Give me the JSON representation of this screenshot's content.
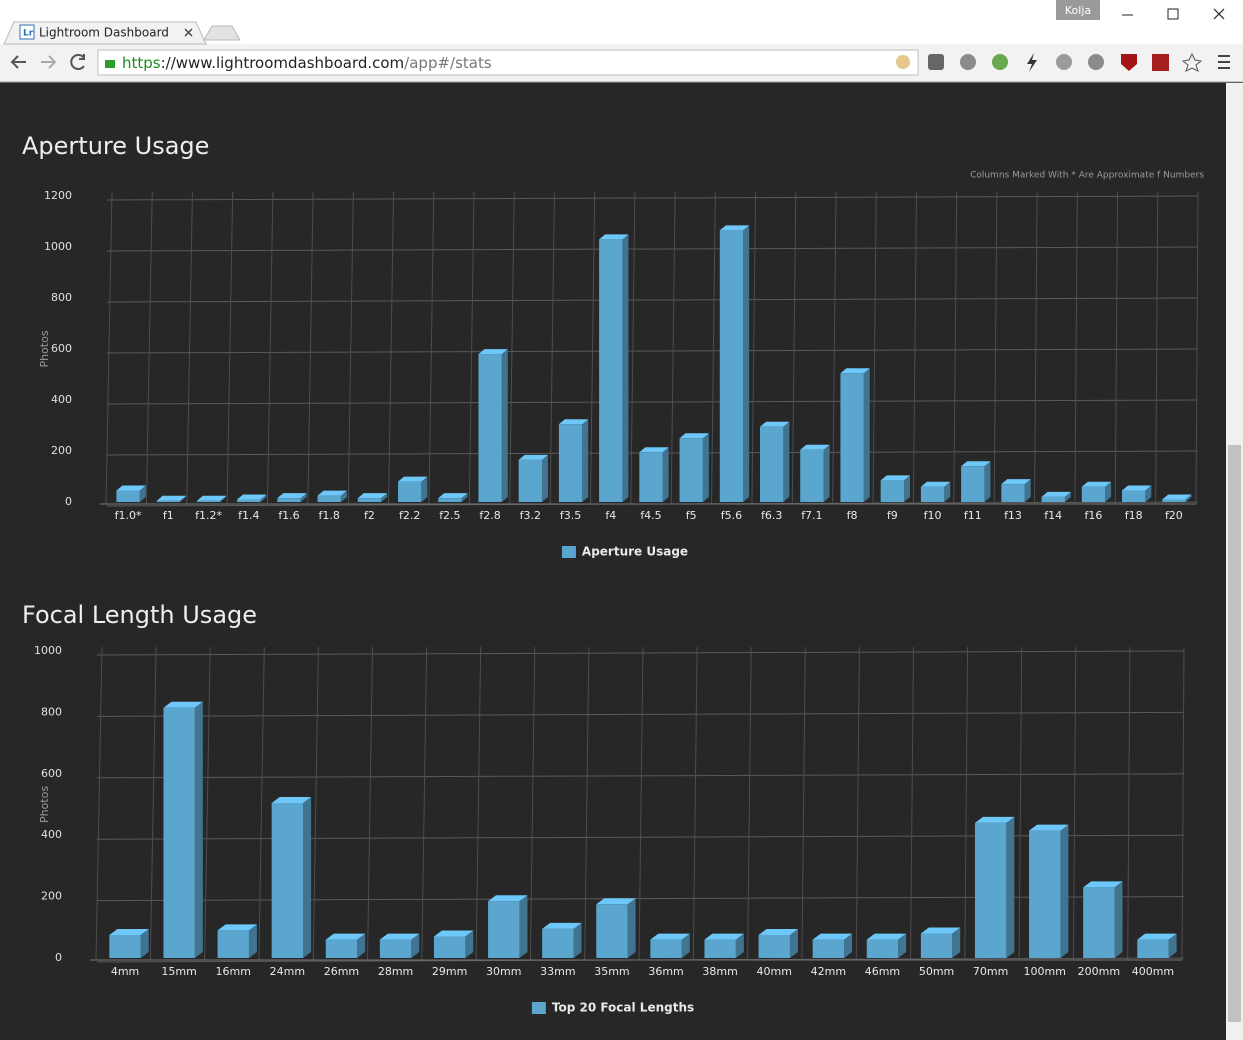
{
  "browser": {
    "tab_title": "Lightroom Dashboard",
    "profile": "Kolja",
    "url": {
      "scheme": "https",
      "host": "://www.lightroomdashboard.com",
      "path": "/app#/stats"
    }
  },
  "chart_data": [
    {
      "type": "bar",
      "title": "Aperture Usage",
      "note": "Columns Marked With * Are Approximate f Numbers",
      "y_label": "Photos",
      "categories": [
        "f1.0*",
        "f1",
        "f1.2*",
        "f1.4",
        "f1.6",
        "f1.8",
        "f2",
        "f2.2",
        "f2.5",
        "f2.8",
        "f3.2",
        "f3.5",
        "f4",
        "f4.5",
        "f5",
        "f5.6",
        "f6.3",
        "f7.1",
        "f8",
        "f9",
        "f10",
        "f11",
        "f13",
        "f14",
        "f16",
        "f18",
        "f20"
      ],
      "series": [
        {
          "name": "Aperture Usage",
          "color": "#5ba6cf",
          "values": [
            45,
            5,
            5,
            10,
            15,
            25,
            15,
            80,
            15,
            580,
            165,
            305,
            1030,
            195,
            250,
            1065,
            295,
            205,
            505,
            85,
            60,
            140,
            70,
            20,
            60,
            45,
            10
          ]
        }
      ],
      "ylim": [
        0,
        1200
      ],
      "yticks": [
        0,
        200,
        400,
        600,
        800,
        1000,
        1200
      ],
      "grid": true
    },
    {
      "type": "bar",
      "title": "Focal Length Usage",
      "y_label": "Photos",
      "categories": [
        "4mm",
        "15mm",
        "16mm",
        "24mm",
        "26mm",
        "28mm",
        "29mm",
        "30mm",
        "33mm",
        "35mm",
        "36mm",
        "38mm",
        "40mm",
        "42mm",
        "46mm",
        "50mm",
        "70mm",
        "100mm",
        "200mm",
        "400mm"
      ],
      "series": [
        {
          "name": "Top 20 Focal Lengths",
          "color": "#5ba6cf",
          "values": [
            75,
            815,
            90,
            505,
            60,
            60,
            70,
            185,
            95,
            175,
            60,
            60,
            75,
            60,
            60,
            80,
            440,
            415,
            230,
            60
          ]
        }
      ],
      "ylim": [
        0,
        1000
      ],
      "yticks": [
        0,
        200,
        400,
        600,
        800,
        1000
      ],
      "grid": true
    }
  ]
}
